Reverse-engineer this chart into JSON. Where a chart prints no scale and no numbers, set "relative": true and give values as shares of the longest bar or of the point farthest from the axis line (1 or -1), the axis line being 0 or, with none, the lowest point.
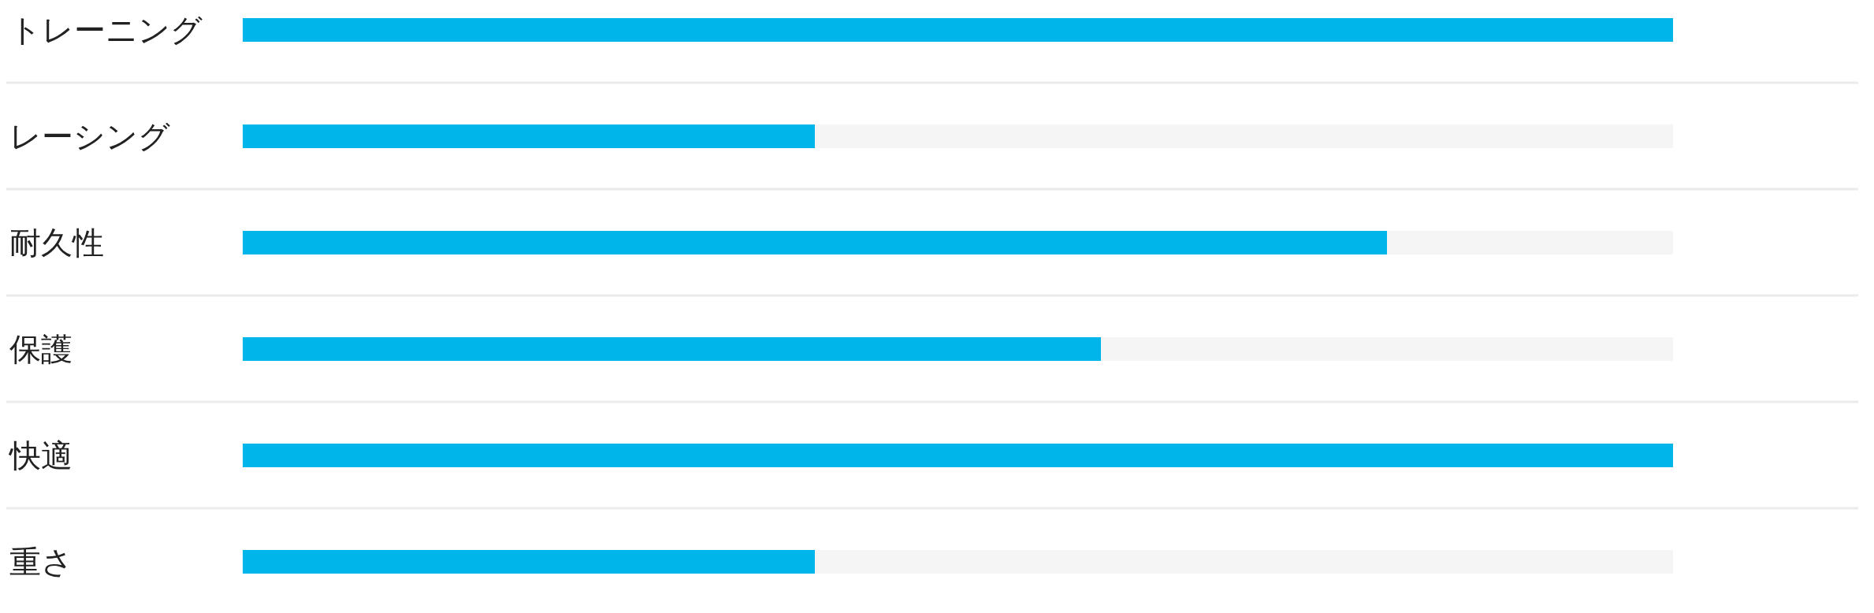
{
  "chart_data": {
    "type": "bar",
    "orientation": "horizontal",
    "stacked": true,
    "relative": true,
    "categories": [
      "トレーニング",
      "レーシング",
      "耐久性",
      "保護",
      "快適",
      "重さ"
    ],
    "series": [
      {
        "color": "#00b5ea",
        "values": [
          1,
          0.4,
          0.8,
          0.6,
          1,
          0.4
        ]
      },
      {
        "color": "#f5f5f5",
        "values": [
          0,
          0.6,
          0.2,
          0.4,
          0,
          0.6
        ]
      }
    ]
  }
}
